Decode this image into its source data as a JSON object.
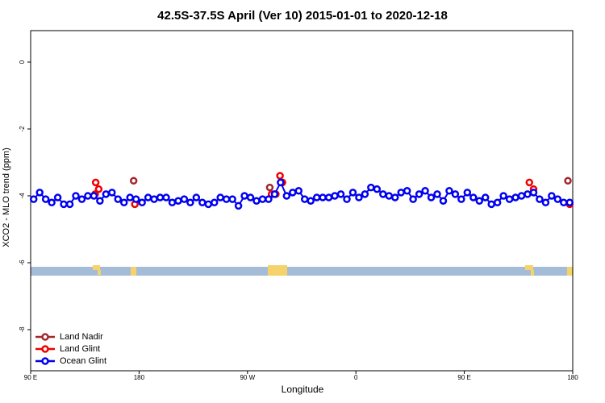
{
  "chart_data": {
    "type": "scatter",
    "title": "42.5S-37.5S April (Ver 10)   2015-01-01 to 2020-12-18",
    "x_label": "Longitude",
    "y_label": "XCO2 - MLO trend (ppm)",
    "xlim": [
      90,
      540
    ],
    "ylim": [
      -9.23,
      0.94
    ],
    "xticks": [
      {
        "value": 90,
        "label": "90 E"
      },
      180,
      {
        "value": 270,
        "label": "90 W"
      },
      {
        "value": 360,
        "label": "0"
      },
      {
        "value": 450,
        "label": "90 E"
      },
      {
        "value": 540,
        "label": "180"
      }
    ],
    "yticks": [
      0,
      -2,
      -4,
      -6,
      -8
    ],
    "legend": "bottom-left",
    "series": [
      {
        "name": "Land Nadir",
        "color": "#a0282d",
        "line": false,
        "x": [
          175.5,
          288.5,
          536
        ],
        "values": [
          -3.55,
          -3.75,
          -3.55
        ]
      },
      {
        "name": "Land Glint",
        "color": "#f00000",
        "line": false,
        "x": [
          144,
          146.5,
          143.5,
          176.5,
          290,
          293.5,
          297,
          299,
          504,
          507.5,
          537.5
        ],
        "values": [
          -3.6,
          -3.8,
          -3.95,
          -4.25,
          -3.95,
          -3.95,
          -3.4,
          -3.6,
          -3.6,
          -3.8,
          -4.25
        ]
      },
      {
        "name": "Ocean Glint",
        "color": "#0000f0",
        "line": true,
        "x": [
          92.5,
          97.5,
          102.5,
          107.5,
          112.5,
          117.5,
          122.5,
          127.5,
          132.5,
          137.5,
          142.5,
          147.5,
          152.5,
          157.5,
          162.5,
          167.5,
          172.5,
          177.5,
          182.5,
          187.5,
          192.5,
          197.5,
          202.5,
          207.5,
          212.5,
          217.5,
          222.5,
          227.5,
          232.5,
          237.5,
          242.5,
          247.5,
          252.5,
          257.5,
          262.5,
          267.5,
          272.5,
          277.5,
          282.5,
          287.5,
          292.5,
          297.5,
          302.5,
          307.5,
          312.5,
          317.5,
          322.5,
          327.5,
          332.5,
          337.5,
          342.5,
          347.5,
          352.5,
          357.5,
          362.5,
          367.5,
          372.5,
          377.5,
          382.5,
          387.5,
          392.5,
          397.5,
          402.5,
          407.5,
          412.5,
          417.5,
          422.5,
          427.5,
          432.5,
          437.5,
          442.5,
          447.5,
          452.5,
          457.5,
          462.5,
          467.5,
          472.5,
          477.5,
          482.5,
          487.5,
          492.5,
          497.5,
          502.5,
          507.5,
          512.5,
          517.5,
          522.5,
          527.5,
          532.5,
          537.5
        ],
        "values": [
          -4.1,
          -3.9,
          -4.1,
          -4.2,
          -4.05,
          -4.25,
          -4.25,
          -4.0,
          -4.1,
          -4.0,
          -4.0,
          -4.15,
          -3.95,
          -3.9,
          -4.1,
          -4.2,
          -4.05,
          -4.1,
          -4.2,
          -4.05,
          -4.1,
          -4.05,
          -4.05,
          -4.2,
          -4.15,
          -4.1,
          -4.2,
          -4.05,
          -4.2,
          -4.25,
          -4.2,
          -4.05,
          -4.1,
          -4.1,
          -4.3,
          -4.0,
          -4.05,
          -4.15,
          -4.1,
          -4.1,
          -3.95,
          -3.6,
          -4.0,
          -3.9,
          -3.85,
          -4.1,
          -4.15,
          -4.05,
          -4.05,
          -4.05,
          -4.0,
          -3.95,
          -4.1,
          -3.9,
          -4.05,
          -3.95,
          -3.75,
          -3.8,
          -3.95,
          -4.0,
          -4.05,
          -3.9,
          -3.85,
          -4.1,
          -3.95,
          -3.85,
          -4.05,
          -3.95,
          -4.15,
          -3.85,
          -3.95,
          -4.1,
          -3.9,
          -4.05,
          -4.15,
          -4.05,
          -4.25,
          -4.2,
          -4.0,
          -4.1,
          -4.05,
          -4.0,
          -3.95,
          -3.9,
          -4.1,
          -4.2,
          -4.0,
          -4.1,
          -4.2,
          -4.2
        ]
      }
    ]
  }
}
